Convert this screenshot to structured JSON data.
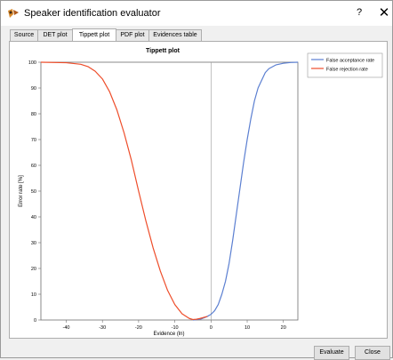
{
  "window": {
    "title": "Speaker identification evaluator",
    "help_label": "?",
    "close_label": "✕"
  },
  "tabs": [
    {
      "label": "Source"
    },
    {
      "label": "DET plot"
    },
    {
      "label": "Tippett plot"
    },
    {
      "label": "PDF plot"
    },
    {
      "label": "Evidences table"
    }
  ],
  "active_tab": "Tippett plot",
  "buttons": {
    "evaluate": "Evaluate",
    "close": "Close"
  },
  "colors": {
    "false_acceptance": "#5b7fd1",
    "false_rejection": "#ee4d2a"
  },
  "chart_data": {
    "type": "line",
    "title": "Tippett plot",
    "xlabel": "Evidence (ln)",
    "ylabel": "Error rate [%]",
    "xlim": [
      -47,
      24
    ],
    "ylim": [
      0,
      100
    ],
    "xticks": [
      "-40",
      "-30",
      "-20",
      "-10",
      "0",
      "10",
      "20"
    ],
    "yticks": [
      "0",
      "10",
      "20",
      "30",
      "40",
      "50",
      "60",
      "70",
      "80",
      "90",
      "100"
    ],
    "legend_position": "top-right",
    "grid": false,
    "series": [
      {
        "name": "False acceptance rate",
        "x": [
          -5,
          -3,
          -2,
          -1,
          0,
          1,
          2,
          3,
          4,
          5,
          6,
          7,
          8,
          9,
          10,
          11,
          12,
          13,
          14,
          15,
          16,
          18,
          20,
          22,
          24
        ],
        "y": [
          0,
          0.3,
          0.8,
          1.4,
          2.2,
          3.6,
          6,
          10,
          15,
          22,
          31,
          41,
          51,
          61,
          70,
          78,
          85,
          90,
          93,
          96,
          97.5,
          99,
          99.6,
          99.9,
          100
        ]
      },
      {
        "name": "False rejection rate",
        "x": [
          -47,
          -40,
          -36,
          -34,
          -32,
          -30,
          -28,
          -26,
          -24,
          -22,
          -20,
          -18,
          -16,
          -14,
          -12,
          -10,
          -8,
          -6,
          -5,
          -4,
          -3,
          -2,
          -1
        ],
        "y": [
          100,
          99.8,
          99.2,
          98.3,
          96.5,
          93.5,
          88.5,
          81.5,
          72.5,
          62,
          50,
          38.5,
          28,
          19,
          11.5,
          6,
          2.4,
          0.6,
          0.2,
          0.3,
          0.6,
          1,
          1.4
        ]
      }
    ]
  }
}
